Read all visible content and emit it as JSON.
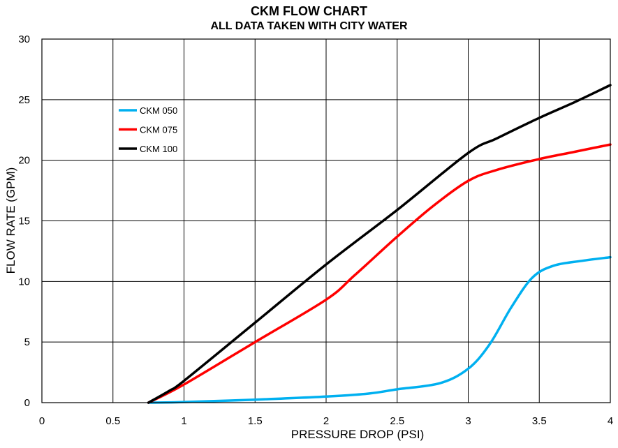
{
  "chart_data": {
    "type": "line",
    "title": "CKM  FLOW CHART",
    "subtitle": "ALL DATA TAKEN WITH CITY WATER",
    "xlabel": "PRESSURE DROP (PSI)",
    "ylabel": "FLOW RATE (GPM)",
    "xlim": [
      0,
      4
    ],
    "ylim": [
      0,
      30
    ],
    "xticks": [
      "0",
      "0.5",
      "1",
      "1.5",
      "2",
      "2.5",
      "3",
      "3.5",
      "4"
    ],
    "yticks": [
      "0",
      "5",
      "10",
      "15",
      "20",
      "25",
      "30"
    ],
    "grid": true,
    "legend_position": "upper-left",
    "series": [
      {
        "name": "CKM 050",
        "color": "#00B0F0",
        "x": [
          0.75,
          1.0,
          1.5,
          2.0,
          2.3,
          2.5,
          2.8,
          3.0,
          3.15,
          3.3,
          3.45,
          3.6,
          3.8,
          4.0
        ],
        "y": [
          0,
          0.05,
          0.25,
          0.5,
          0.75,
          1.1,
          1.6,
          2.8,
          4.8,
          7.8,
          10.3,
          11.3,
          11.7,
          12.0
        ]
      },
      {
        "name": "CKM 075",
        "color": "#FF0000",
        "x": [
          0.75,
          1.0,
          1.5,
          2.0,
          2.2,
          2.5,
          2.75,
          3.0,
          3.2,
          3.5,
          3.75,
          4.0
        ],
        "y": [
          0,
          1.5,
          5.0,
          8.5,
          10.5,
          13.7,
          16.2,
          18.3,
          19.2,
          20.1,
          20.7,
          21.3
        ]
      },
      {
        "name": "CKM 100",
        "color": "#000000",
        "x": [
          0.75,
          0.9,
          1.0,
          1.5,
          2.0,
          2.5,
          3.0,
          3.2,
          3.5,
          3.75,
          4.0
        ],
        "y": [
          0,
          1.0,
          1.8,
          6.6,
          11.4,
          15.9,
          20.6,
          21.8,
          23.5,
          24.8,
          26.2
        ]
      }
    ]
  }
}
